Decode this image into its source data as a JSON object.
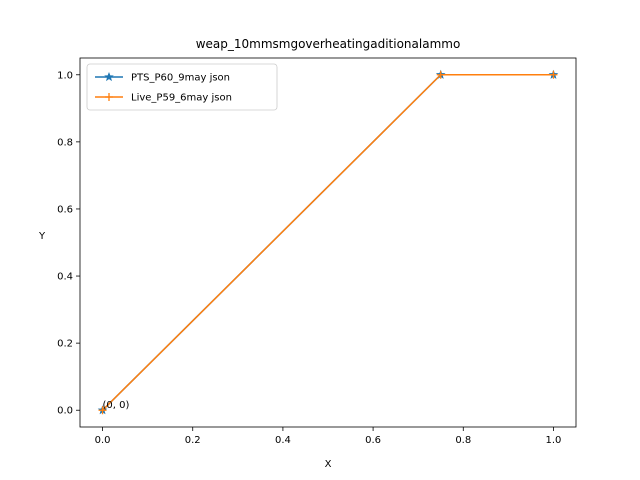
{
  "chart_data": {
    "type": "line",
    "title": "weap_10mmsmgoverheatingaditionalammo",
    "xlabel": "X",
    "ylabel": "Y",
    "xlim": [
      -0.05,
      1.05
    ],
    "ylim": [
      -0.05,
      1.05
    ],
    "xticks": [
      0.0,
      0.2,
      0.4,
      0.6,
      0.8,
      1.0
    ],
    "xtick_labels": [
      "0.0",
      "0.2",
      "0.4",
      "0.6",
      "0.8",
      "1.0"
    ],
    "yticks": [
      0.0,
      0.2,
      0.4,
      0.6,
      0.8,
      1.0
    ],
    "ytick_labels": [
      "0.0",
      "0.2",
      "0.4",
      "0.6",
      "0.8",
      "1.0"
    ],
    "grid": false,
    "legend_position": "top-left",
    "series": [
      {
        "name": "PTS_P60_9may json",
        "color": "#1f77b4",
        "marker": "star",
        "x": [
          0,
          0.75,
          1.0
        ],
        "y": [
          0,
          1.0,
          1.0
        ]
      },
      {
        "name": "Live_P59_6may json",
        "color": "#ff7f0e",
        "marker": "plus",
        "x": [
          0,
          0.75,
          1.0
        ],
        "y": [
          0,
          1.0,
          1.0
        ]
      }
    ],
    "annotations": [
      {
        "text": "(0, 0)",
        "x": 0,
        "y": 0
      }
    ]
  }
}
